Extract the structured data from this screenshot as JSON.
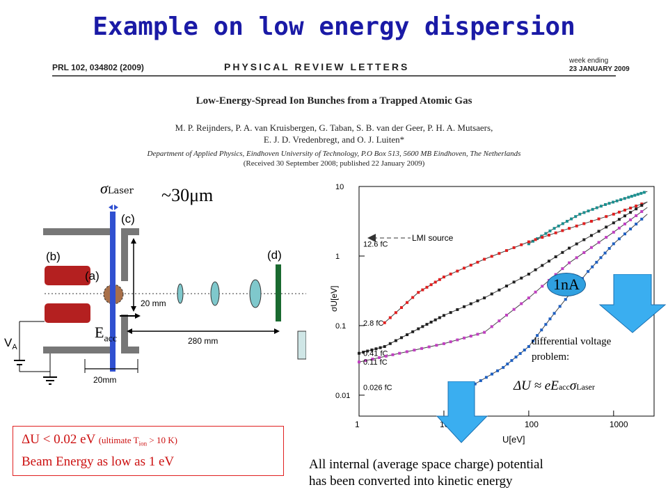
{
  "slide": {
    "title": "Example on low energy dispersion"
  },
  "paper": {
    "reference": "PRL 102, 034802 (2009)",
    "journal": "PHYSICAL REVIEW LETTERS",
    "week_line1": "week ending",
    "week_line2": "23 JANUARY 2009",
    "title": "Low-Energy-Spread Ion Bunches from a Trapped Atomic Gas",
    "authors_line1": "M. P. Reijnders, P. A. van Kruisbergen, G. Taban, S. B. van der Geer, P. H. A. Mutsaers,",
    "authors_line2": "E. J. D. Vredenbregt, and O. J. Luiten*",
    "affiliation": "Department of Applied Physics, Eindhoven University of Technology, P.O Box 513, 5600 MB Eindhoven, The Netherlands",
    "received": "(Received 30 September 2008; published 22 January 2009)"
  },
  "setup": {
    "sigma_symbol": "σ",
    "sigma_sub": "Laser",
    "sigma_value": "~30μm",
    "label_c": "(c)",
    "label_b": "(b)",
    "label_a": "(a)",
    "label_d": "(d)",
    "gap_20mm": "20 mm",
    "dist_280mm": "280 mm",
    "width_20mm": "20mm",
    "va": "V",
    "va_sub": "A",
    "eacc": "E",
    "eacc_sub": "acc"
  },
  "chart_data": {
    "type": "scatter",
    "xlabel": "U[eV]",
    "ylabel": "σU[eV]",
    "x_scale": "log",
    "y_scale": "log",
    "xlim": [
      1,
      3000
    ],
    "ylim": [
      0.005,
      10
    ],
    "x_ticks": [
      "1",
      "10",
      "100",
      "1000"
    ],
    "y_ticks": [
      "0.01",
      "0.1",
      "1",
      "10"
    ],
    "annotation": "LMI source",
    "series": [
      {
        "name": "12.6 fC",
        "color": "#1a9090",
        "points": [
          [
            100,
            1.5
          ],
          [
            200,
            2.5
          ],
          [
            400,
            4
          ],
          [
            800,
            5.5
          ],
          [
            1500,
            7
          ],
          [
            2500,
            8.5
          ]
        ]
      },
      {
        "name": "2.8 fC",
        "color": "#e02020",
        "points": [
          [
            2,
            0.11
          ],
          [
            5,
            0.3
          ],
          [
            10,
            0.5
          ],
          [
            30,
            0.9
          ],
          [
            100,
            1.6
          ],
          [
            300,
            2.5
          ],
          [
            1000,
            4
          ],
          [
            2500,
            6
          ]
        ]
      },
      {
        "name": "0.41 fC",
        "color": "#202020",
        "points": [
          [
            1,
            0.04
          ],
          [
            2,
            0.05
          ],
          [
            5,
            0.09
          ],
          [
            10,
            0.14
          ],
          [
            30,
            0.25
          ],
          [
            100,
            0.55
          ],
          [
            300,
            1.3
          ],
          [
            1000,
            3
          ],
          [
            2500,
            6
          ]
        ]
      },
      {
        "name": "0.11 fC",
        "color": "#c040c0",
        "points": [
          [
            1,
            0.03
          ],
          [
            3,
            0.04
          ],
          [
            10,
            0.055
          ],
          [
            30,
            0.08
          ],
          [
            100,
            0.25
          ],
          [
            300,
            0.8
          ],
          [
            1000,
            2.2
          ],
          [
            2500,
            5
          ]
        ]
      },
      {
        "name": "0.026 fC",
        "color": "#2060c0",
        "points": [
          [
            20,
            0.013
          ],
          [
            50,
            0.025
          ],
          [
            100,
            0.05
          ],
          [
            200,
            0.15
          ],
          [
            500,
            0.6
          ],
          [
            1000,
            1.5
          ],
          [
            2500,
            4
          ]
        ]
      }
    ]
  },
  "annotations": {
    "one_na": "1nA",
    "diff_line1": "differential voltage",
    "diff_line2": "problem:",
    "formula": "ΔU ≈ eE",
    "formula_acc": "acc",
    "formula_sigma": "σ",
    "formula_laser": "Laser"
  },
  "infobox": {
    "line1_main": "ΔU < 0.02 eV",
    "line1_paren_a": "(ultimate T",
    "line1_paren_sub": "ion",
    "line1_paren_b": " > 10 K)",
    "line2": "Beam Energy as low as 1 eV"
  },
  "conclusion": {
    "line1": "All internal (average space charge) potential",
    "line2": "has been converted into kinetic energy"
  },
  "colors": {
    "title": "#1a1aa6",
    "laser": "#3050d0",
    "arrow": "#3aaef0",
    "box": "#e02020"
  }
}
